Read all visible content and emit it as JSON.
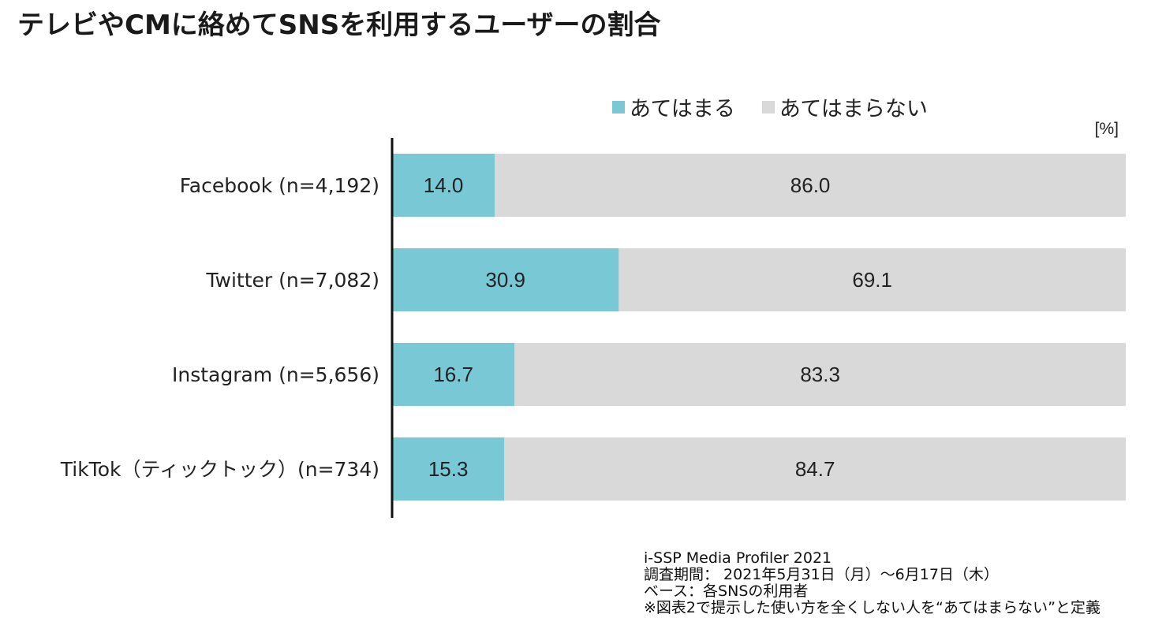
{
  "title": "テレビやCMに絡めてSNSを利用するユーザーの割合",
  "unit": "[%]",
  "legend": [
    {
      "label": "あてはまる",
      "color": "#78c8d6"
    },
    {
      "label": "あてはまらない",
      "color": "#d9d9d9"
    }
  ],
  "footer": {
    "line1": "i-SSP Media Profiler 2021",
    "line2": "調査期間： 2021年5月31日（月）～6月17日（木）",
    "line3": "ベース：各SNSの利用者",
    "line4": "※図表2で提示した使い方を全くしない人を“あてはまらない”と定義"
  },
  "chart_data": {
    "type": "bar",
    "orientation": "horizontal",
    "stacked": true,
    "categories": [
      "Facebook (n=4,192)",
      "Twitter (n=7,082)",
      "Instagram (n=5,656)",
      "TikTok（ティックトック）(n=734)"
    ],
    "series": [
      {
        "name": "あてはまる",
        "values": [
          14.0,
          30.9,
          16.7,
          15.3
        ],
        "color": "#78c8d6"
      },
      {
        "name": "あてはまらない",
        "values": [
          86.0,
          69.1,
          83.3,
          84.7
        ],
        "color": "#d9d9d9"
      }
    ],
    "xlim": [
      0,
      100
    ],
    "value_labels": true,
    "grid": false,
    "legend_position": "top-right"
  }
}
